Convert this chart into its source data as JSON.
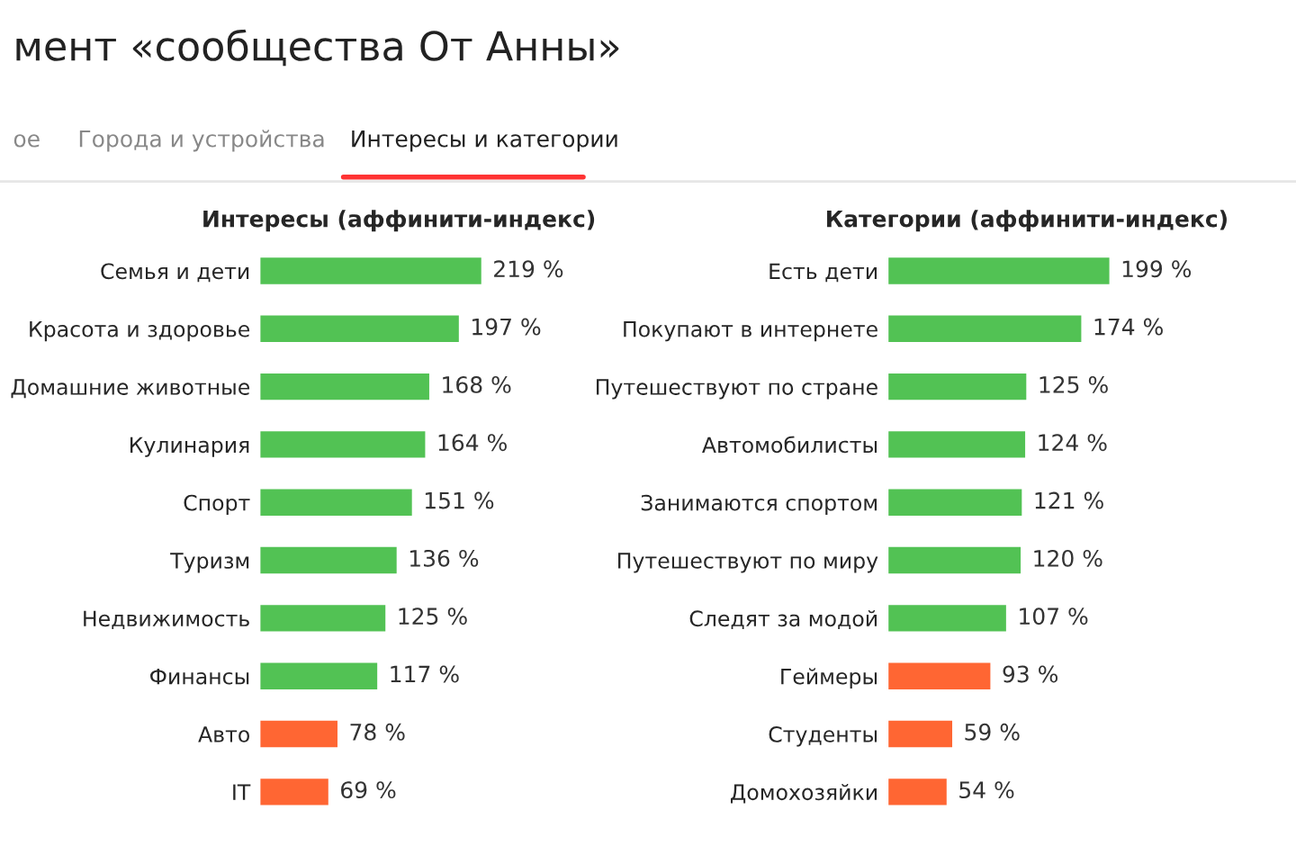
{
  "chart_data": [
    {
      "type": "bar",
      "orientation": "horizontal",
      "title": "Интересы (аффинити-индекс)",
      "categories": [
        "Семья и дети",
        "Красота и здоровье",
        "Домашние животные",
        "Кулинария",
        "Спорт",
        "Туризм",
        "Недвижимость",
        "Финансы",
        "Авто",
        "IT"
      ],
      "values": [
        219,
        197,
        168,
        164,
        151,
        136,
        125,
        117,
        78,
        69
      ],
      "value_labels": [
        "219 %",
        "197 %",
        "168 %",
        "164 %",
        "151 %",
        "136 %",
        "125 %",
        "117 %",
        "78 %",
        "69 %"
      ],
      "colors": [
        "#52c254",
        "#52c254",
        "#52c254",
        "#52c254",
        "#52c254",
        "#52c254",
        "#52c254",
        "#52c254",
        "#ff6633",
        "#ff6633"
      ],
      "tick_labels": "y",
      "grid": false,
      "annotations": [
        "мент «сообщества От Анны»",
        "ое",
        "Города и устройства",
        "Интересы и категории"
      ]
    },
    {
      "type": "bar",
      "orientation": "horizontal",
      "title": "Категории (аффинити-индекс)",
      "categories": [
        "Есть дети",
        "Покупают в интернете",
        "Путешествуют по стране",
        "Автомобилисты",
        "Занимаются спортом",
        "Путешествуют по миру",
        "Следят за модой",
        "Геймеры",
        "Студенты",
        "Домохозяйки"
      ],
      "values": [
        199,
        174,
        125,
        124,
        121,
        120,
        107,
        93,
        59,
        54
      ],
      "value_labels": [
        "199 %",
        "174 %",
        "125 %",
        "124 %",
        "121 %",
        "120 %",
        "107 %",
        "93 %",
        "59 %",
        "54 %"
      ],
      "colors": [
        "#52c254",
        "#52c254",
        "#52c254",
        "#52c254",
        "#52c254",
        "#52c254",
        "#52c254",
        "#ff6633",
        "#ff6633",
        "#ff6633"
      ],
      "tick_labels": "y",
      "grid": false
    }
  ]
}
